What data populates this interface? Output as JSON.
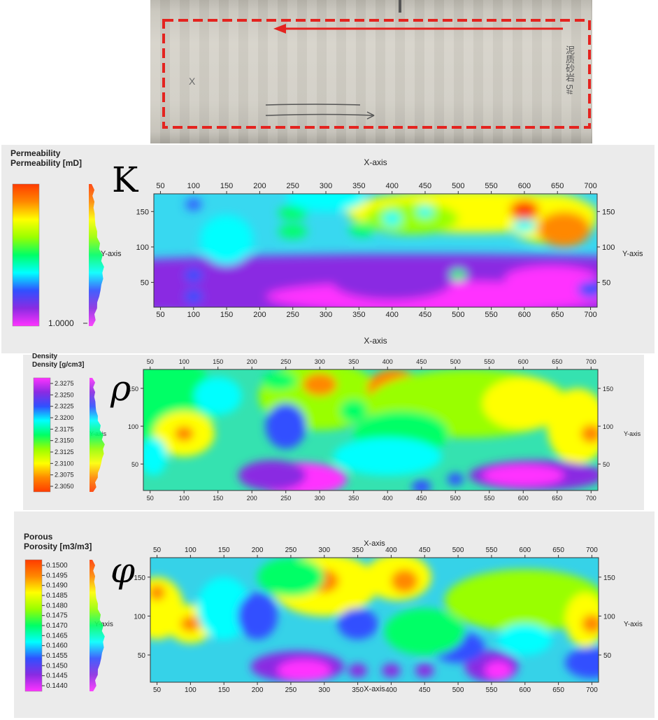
{
  "photo": {
    "arrow_color": "#e4231f",
    "marking_right": "泥质砂岩 5#",
    "marking_left": "X"
  },
  "chart_data": [
    {
      "type": "heatmap",
      "symbol": "K",
      "legend_title": "Permeability",
      "legend_subtitle": "Permeability [mD]",
      "colorbar_ticks": [
        "1.0000"
      ],
      "colormap": [
        "#ff33ff",
        "#8a2be2",
        "#3050ff",
        "#00ffff",
        "#00ff66",
        "#99ff00",
        "#ffff00",
        "#ff8800",
        "#ff3b00"
      ],
      "xlabel": "X-axis",
      "ylabel": "Y-axis",
      "xlim": [
        40,
        710
      ],
      "ylim": [
        15,
        175
      ],
      "xticks": [
        50,
        100,
        150,
        200,
        250,
        300,
        350,
        400,
        450,
        500,
        550,
        600,
        650,
        700
      ],
      "yticks": [
        50,
        100,
        150
      ],
      "x_axis_position": "top-and-bottom",
      "y_axis_position": "left-and-right"
    },
    {
      "type": "heatmap",
      "symbol": "ρ",
      "legend_title": "Density",
      "legend_subtitle": "Density [g/cm3]",
      "colorbar_ticks": [
        "2.3275",
        "2.3250",
        "2.3225",
        "2.3200",
        "2.3175",
        "2.3150",
        "2.3125",
        "2.3100",
        "2.3075",
        "2.3050"
      ],
      "colormap": [
        "#ff33ff",
        "#8a2be2",
        "#3050ff",
        "#00ffff",
        "#00ff66",
        "#99ff00",
        "#ffff00",
        "#ff8800",
        "#ff3b00"
      ],
      "xlabel": "",
      "ylabel": "Y-axis",
      "xlim": [
        40,
        710
      ],
      "ylim": [
        15,
        175
      ],
      "xticks": [
        50,
        100,
        150,
        200,
        250,
        300,
        350,
        400,
        450,
        500,
        550,
        600,
        650,
        700
      ],
      "yticks": [
        50,
        100,
        150
      ],
      "x_axis_position": "top-and-bottom",
      "y_axis_position": "left-and-right"
    },
    {
      "type": "heatmap",
      "symbol": "φ",
      "legend_title": "Porous",
      "legend_subtitle": "Porosity [m3/m3]",
      "colorbar_ticks": [
        "0.1500",
        "0.1495",
        "0.1490",
        "0.1485",
        "0.1480",
        "0.1475",
        "0.1470",
        "0.1465",
        "0.1460",
        "0.1455",
        "0.1450",
        "0.1445",
        "0.1440"
      ],
      "colormap": [
        "#ff33ff",
        "#8a2be2",
        "#3050ff",
        "#00ffff",
        "#00ff66",
        "#99ff00",
        "#ffff00",
        "#ff8800",
        "#ff3b00"
      ],
      "xlabel": "X-axis",
      "ylabel": "Y-axis",
      "xlim": [
        40,
        710
      ],
      "ylim": [
        15,
        175
      ],
      "xticks": [
        50,
        100,
        150,
        200,
        250,
        300,
        350,
        400,
        450,
        500,
        550,
        600,
        650,
        700
      ],
      "yticks": [
        50,
        100,
        150
      ],
      "x_axis_position": "top-and-bottom",
      "y_axis_position": "left-and-right"
    }
  ]
}
